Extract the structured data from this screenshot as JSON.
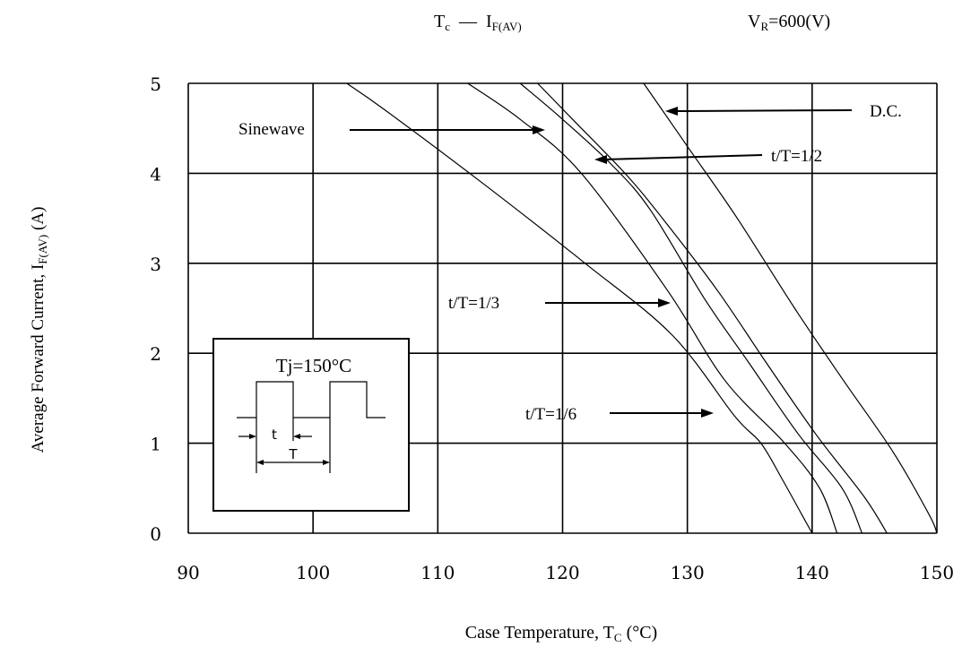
{
  "chart_data": {
    "type": "line",
    "title": {
      "main": "T",
      "main_sub": "c",
      "dash": "—",
      "rhs": "I",
      "rhs_sub": "F(AV)"
    },
    "condition": {
      "main": "V",
      "sub": "R",
      "rest": "=600(V)"
    },
    "xlabel": {
      "main": "Case Temperature, T",
      "sub": "C",
      "rest": " (°C)"
    },
    "ylabel": {
      "main": "Average Forward Current, I",
      "sub": "F(AV)",
      "rest": " (A)"
    },
    "xlim": [
      90,
      150
    ],
    "ylim": [
      0,
      5
    ],
    "grid": true,
    "xticks": [
      "90",
      "100",
      "110",
      "120",
      "130",
      "140",
      "150"
    ],
    "yticks": [
      "0",
      "1",
      "2",
      "3",
      "4",
      "5"
    ],
    "series": [
      {
        "name": "t/T=1/6",
        "x": [
          102.7,
          105.8,
          113.5,
          121.8,
          128.8,
          133.8,
          135.9,
          137.6,
          139.2,
          140.0
        ],
        "y": [
          5.0,
          4.7,
          3.9,
          3.0,
          2.2,
          1.3,
          1.0,
          0.6,
          0.2,
          0.0
        ]
      },
      {
        "name": "t/T=1/3",
        "x": [
          112.4,
          116.6,
          121.5,
          128.4,
          133.0,
          137.8,
          140.6,
          142.0
        ],
        "y": [
          5.0,
          4.6,
          4.0,
          2.7,
          1.7,
          1.0,
          0.5,
          0.0
        ]
      },
      {
        "name": "t/T=1/2",
        "x": [
          116.6,
          120.0,
          123.9,
          127.0,
          131.4,
          134.9,
          138.9,
          142.4,
          144.0
        ],
        "y": [
          5.0,
          4.6,
          4.1,
          3.6,
          2.6,
          1.9,
          1.1,
          0.5,
          0.0
        ]
      },
      {
        "name": "Sinewave",
        "x": [
          118.0,
          120.8,
          125.0,
          128.0,
          132.4,
          136.3,
          140.3,
          144.2,
          146.0
        ],
        "y": [
          5.0,
          4.6,
          4.0,
          3.5,
          2.7,
          1.9,
          1.1,
          0.4,
          0.0
        ]
      },
      {
        "name": "D.C.",
        "x": [
          126.5,
          130.0,
          134.0,
          138.6,
          142.5,
          146.5,
          149.4,
          150.0
        ],
        "y": [
          5.0,
          4.3,
          3.5,
          2.5,
          1.7,
          0.9,
          0.2,
          0.0
        ]
      }
    ],
    "annotations": [
      {
        "text": "Sinewave",
        "target_series": "Sinewave"
      },
      {
        "text": "D.C.",
        "target_series": "D.C."
      },
      {
        "text": "t/T=1/2",
        "target_series": "t/T=1/2"
      },
      {
        "text": "t/T=1/3",
        "target_series": "t/T=1/3"
      },
      {
        "text": "t/T=1/6",
        "target_series": "t/T=1/6"
      }
    ],
    "inset": {
      "label": "Tj=150°C",
      "t_label": "t",
      "T_label": "T"
    }
  }
}
